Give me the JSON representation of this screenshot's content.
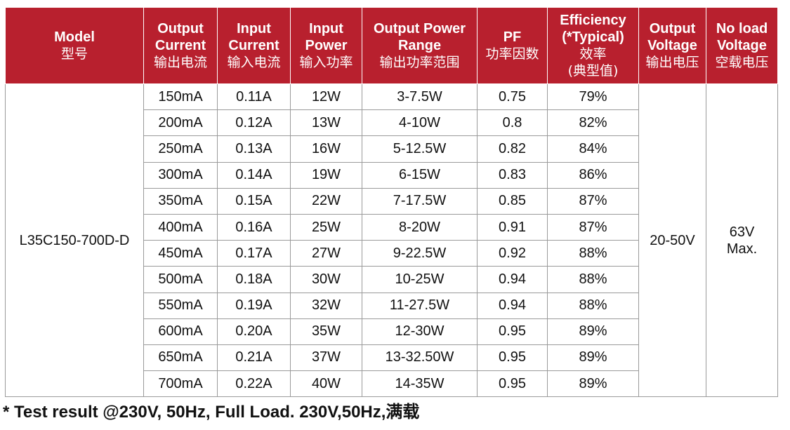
{
  "table": {
    "headers": [
      {
        "en": "Model",
        "cn": "型号"
      },
      {
        "en": "Output\nCurrent",
        "cn": "输出电流"
      },
      {
        "en": "Input\nCurrent",
        "cn": "输入电流"
      },
      {
        "en": "Input\nPower",
        "cn": "输入功率"
      },
      {
        "en": "Output Power\nRange",
        "cn": "输出功率范围"
      },
      {
        "en": "PF",
        "cn": "功率因数"
      },
      {
        "en": "Efficiency\n(*Typical)",
        "cn": "效率\n(典型值)"
      },
      {
        "en": "Output\nVoltage",
        "cn": "输出电压"
      },
      {
        "en": "No load\nVoltage",
        "cn": "空载电压"
      }
    ],
    "model": "L35C150-700D-D",
    "output_voltage": "20-50V",
    "no_load_voltage": "63V\nMax.",
    "rows": [
      [
        "150mA",
        "0.11A",
        "12W",
        "3-7.5W",
        "0.75",
        "79%"
      ],
      [
        "200mA",
        "0.12A",
        "13W",
        "4-10W",
        "0.8",
        "82%"
      ],
      [
        "250mA",
        "0.13A",
        "16W",
        "5-12.5W",
        "0.82",
        "84%"
      ],
      [
        "300mA",
        "0.14A",
        "19W",
        "6-15W",
        "0.83",
        "86%"
      ],
      [
        "350mA",
        "0.15A",
        "22W",
        "7-17.5W",
        "0.85",
        "87%"
      ],
      [
        "400mA",
        "0.16A",
        "25W",
        "8-20W",
        "0.91",
        "87%"
      ],
      [
        "450mA",
        "0.17A",
        "27W",
        "9-22.5W",
        "0.92",
        "88%"
      ],
      [
        "500mA",
        "0.18A",
        "30W",
        "10-25W",
        "0.94",
        "88%"
      ],
      [
        "550mA",
        "0.19A",
        "32W",
        "11-27.5W",
        "0.94",
        "88%"
      ],
      [
        "600mA",
        "0.20A",
        "35W",
        "12-30W",
        "0.95",
        "89%"
      ],
      [
        "650mA",
        "0.21A",
        "37W",
        "13-32.50W",
        "0.95",
        "89%"
      ],
      [
        "700mA",
        "0.22A",
        "40W",
        "14-35W",
        "0.95",
        "89%"
      ]
    ]
  },
  "footnote": {
    "en": "* Test result @230V, 50Hz, Full Load. 230V,50Hz,",
    "cn": "满载"
  },
  "colors": {
    "header_bg": "#b8202e",
    "header_text": "#ffffff",
    "border": "#9a9a9a"
  }
}
